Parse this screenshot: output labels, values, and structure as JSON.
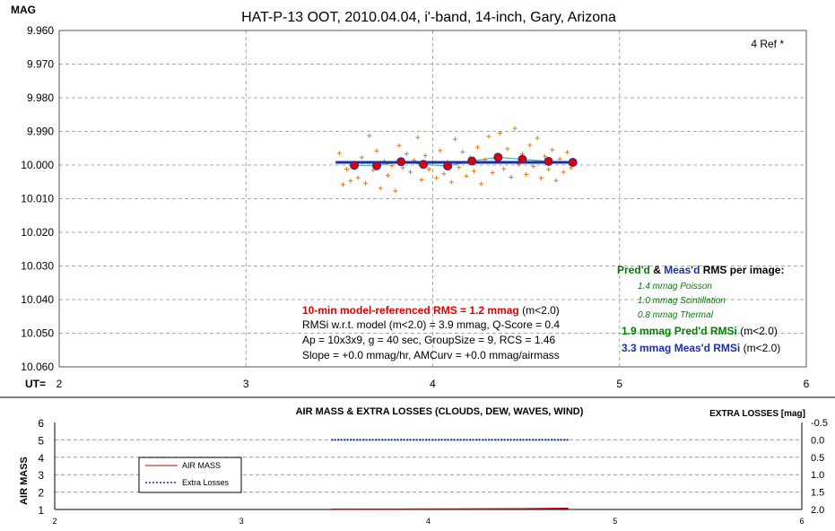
{
  "main_chart": {
    "title": "HAT-P-13 OOT, 2010.04.04, i'-band, 14-inch, Gary, Arizona",
    "y_axis_label": "MAG",
    "x_axis_label": "UT=",
    "ref_label": "4 Ref *",
    "y_ticks": [
      "9.960",
      "9.970",
      "9.980",
      "9.990",
      "10.000",
      "10.010",
      "10.020",
      "10.030",
      "10.040",
      "10.050",
      "10.060"
    ],
    "x_ticks": [
      "2",
      "3",
      "4",
      "5",
      "6"
    ],
    "annotations": {
      "rms_red": "10-min model-referenced RMS = 1.2 mmag",
      "rms_red_suffix": " (m<2.0)",
      "line2": "RMSi w.r.t. model (m<2.0) = 3.9 mmag, Q-Score = 0.4",
      "line3": "Ap = 10x3x9, g = 40 sec, GroupSize = 9, RCS = 1.46",
      "line4": "Slope = +0.0 mmag/hr, AMCurv = +0.0 mmag/airmass"
    },
    "rms_panel": {
      "h_pred": "Pred'd",
      "h_amp": " & ",
      "h_meas": "Meas'd",
      "h_rest": " RMS per image:",
      "poisson": "1.4 mmag Poisson",
      "scint": "1.0 mmag Scintillation",
      "thermal": "0.8 mmag Thermal",
      "pred_line": "1.9 mmag Pred'd  RMSi",
      "pred_suffix": " (m<2.0)",
      "meas_line": "3.3 mmag Meas'd RMSi",
      "meas_suffix": " (m<2.0)"
    }
  },
  "bottom_chart": {
    "title": "AIR MASS & EXTRA LOSSES (CLOUDS, DEW, WAVES, WIND)",
    "y_left_label": "AIR MASS",
    "y_right_label": "EXTRA LOSSES [mag]",
    "y_left_ticks": [
      "6",
      "5",
      "4",
      "3",
      "2",
      "1"
    ],
    "y_right_ticks": [
      "-0.5",
      "0.0",
      "0.5",
      "1.0",
      "1.5",
      "2.0"
    ],
    "x_ticks": [
      "2",
      "3",
      "4",
      "5",
      "6"
    ],
    "legend": {
      "airmass": "AIR MASS",
      "extra": "Extra Losses"
    }
  },
  "chart_data": [
    {
      "type": "scatter",
      "title": "HAT-P-13 OOT, 2010.04.04, i'-band, 14-inch, Gary, Arizona",
      "xlabel": "UT=",
      "ylabel": "MAG",
      "xlim": [
        2,
        6
      ],
      "ylim": [
        9.96,
        10.06
      ],
      "y_inverted": true,
      "grid": true,
      "colors": {
        "points": "#e07a1a",
        "binned": "#dd0000",
        "model": "#1a2fa8",
        "smooth": "#4db3b3"
      },
      "series": [
        {
          "points": [
            [
              3.5,
              9.9965
            ],
            [
              3.52,
              10.0058
            ],
            [
              3.54,
              10.0012
            ],
            [
              3.56,
              10.0047
            ],
            [
              3.58,
              9.9993
            ],
            [
              3.6,
              10.0038
            ],
            [
              3.62,
              9.9978
            ],
            [
              3.64,
              10.0054
            ],
            [
              3.66,
              9.9913
            ],
            [
              3.68,
              10.0016
            ],
            [
              3.7,
              9.9958
            ],
            [
              3.72,
              10.0069
            ],
            [
              3.74,
              9.9989
            ],
            [
              3.76,
              10.0031
            ],
            [
              3.78,
              10.0002
            ],
            [
              3.8,
              10.0077
            ],
            [
              3.82,
              9.9942
            ],
            [
              3.84,
              10.0008
            ],
            [
              3.86,
              9.9967
            ],
            [
              3.88,
              10.0021
            ],
            [
              3.9,
              9.9986
            ],
            [
              3.92,
              9.9918
            ],
            [
              3.94,
              10.0044
            ],
            [
              3.96,
              9.9972
            ],
            [
              3.98,
              10.0012
            ],
            [
              4.0,
              9.9993
            ],
            [
              4.02,
              10.0038
            ],
            [
              4.04,
              9.9957
            ],
            [
              4.06,
              10.0026
            ],
            [
              4.08,
              9.999
            ],
            [
              4.1,
              10.0051
            ],
            [
              4.12,
              9.9923
            ],
            [
              4.14,
              10.0007
            ],
            [
              4.16,
              9.9961
            ],
            [
              4.18,
              10.0033
            ],
            [
              4.2,
              9.9978
            ],
            [
              4.22,
              10.0018
            ],
            [
              4.24,
              9.9947
            ],
            [
              4.26,
              10.0056
            ],
            [
              4.28,
              9.9984
            ],
            [
              4.3,
              9.9915
            ],
            [
              4.32,
              10.0023
            ],
            [
              4.34,
              9.9969
            ],
            [
              4.36,
              9.9905
            ],
            [
              4.38,
              10.0011
            ],
            [
              4.4,
              9.9952
            ],
            [
              4.42,
              10.0036
            ],
            [
              4.44,
              9.9891
            ],
            [
              4.46,
              9.9998
            ],
            [
              4.48,
              9.9967
            ],
            [
              4.5,
              10.0028
            ],
            [
              4.52,
              9.9941
            ],
            [
              4.54,
              10.0004
            ],
            [
              4.56,
              9.992
            ],
            [
              4.58,
              10.0039
            ],
            [
              4.6,
              9.9974
            ],
            [
              4.62,
              10.0013
            ],
            [
              4.64,
              9.9955
            ],
            [
              4.66,
              10.0046
            ],
            [
              4.68,
              9.9982
            ],
            [
              4.7,
              10.0021
            ],
            [
              4.72,
              9.9962
            ],
            [
              4.74,
              10.0008
            ]
          ]
        },
        {
          "points": [
            [
              3.58,
              10.0001
            ],
            [
              3.7,
              10.0002
            ],
            [
              3.83,
              9.999
            ],
            [
              3.95,
              9.9998
            ],
            [
              4.08,
              10.0003
            ],
            [
              4.21,
              9.9988
            ],
            [
              4.35,
              9.9977
            ],
            [
              4.48,
              9.9983
            ],
            [
              4.62,
              9.9989
            ],
            [
              4.75,
              9.9992
            ]
          ]
        }
      ],
      "model_line": [
        [
          3.48,
          9.9992
        ],
        [
          4.75,
          9.9992
        ]
      ]
    },
    {
      "type": "line",
      "title": "AIR MASS & EXTRA LOSSES (CLOUDS, DEW, WAVES, WIND)",
      "xlim": [
        2,
        6
      ],
      "ylim": [
        1,
        6
      ],
      "y2lim": [
        -0.5,
        2.0
      ],
      "series": [
        {
          "name": "AIR MASS",
          "color": "#c00000",
          "x": [
            3.48,
            4.0,
            4.5,
            4.75
          ],
          "values": [
            1.01,
            1.02,
            1.04,
            1.06
          ]
        },
        {
          "name": "Extra Losses",
          "color": "#1a2fa8",
          "axis": "right",
          "x": [
            3.48,
            4.0,
            4.5,
            4.75
          ],
          "values": [
            0.0,
            0.0,
            0.0,
            0.0
          ]
        }
      ]
    }
  ]
}
